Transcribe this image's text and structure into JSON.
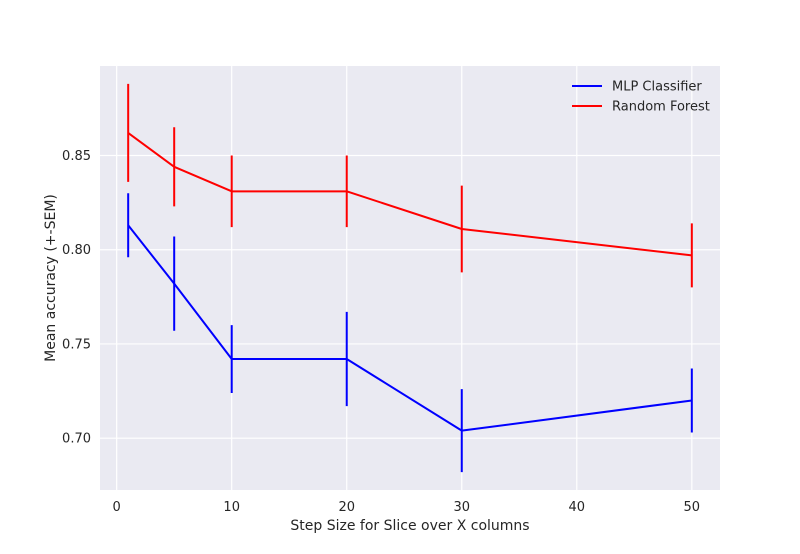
{
  "chart_data": {
    "type": "line",
    "title": "",
    "xlabel": "Step Size for Slice over X columns",
    "ylabel": "Mean accuracy (+-SEM)",
    "xlim": [
      -1.45,
      52.45
    ],
    "ylim": [
      0.6725,
      0.8975
    ],
    "xticks": [
      0,
      10,
      20,
      30,
      40,
      50
    ],
    "yticks": [
      0.7,
      0.75,
      0.8,
      0.85
    ],
    "grid": true,
    "legend_position": "top-right",
    "x": [
      1,
      5,
      10,
      20,
      30,
      50
    ],
    "series": [
      {
        "name": "MLP Classifier",
        "color": "#0000ff",
        "values": [
          0.813,
          0.782,
          0.742,
          0.742,
          0.704,
          0.72
        ],
        "err": [
          0.017,
          0.025,
          0.018,
          0.025,
          0.022,
          0.017
        ]
      },
      {
        "name": "Random Forest",
        "color": "#ff0000",
        "values": [
          0.862,
          0.844,
          0.831,
          0.831,
          0.811,
          0.797
        ],
        "err": [
          0.026,
          0.021,
          0.019,
          0.019,
          0.023,
          0.017
        ]
      }
    ]
  },
  "style": {
    "background": "#eaeaf2",
    "grid_color": "#ffffff",
    "text_color": "#262626"
  }
}
